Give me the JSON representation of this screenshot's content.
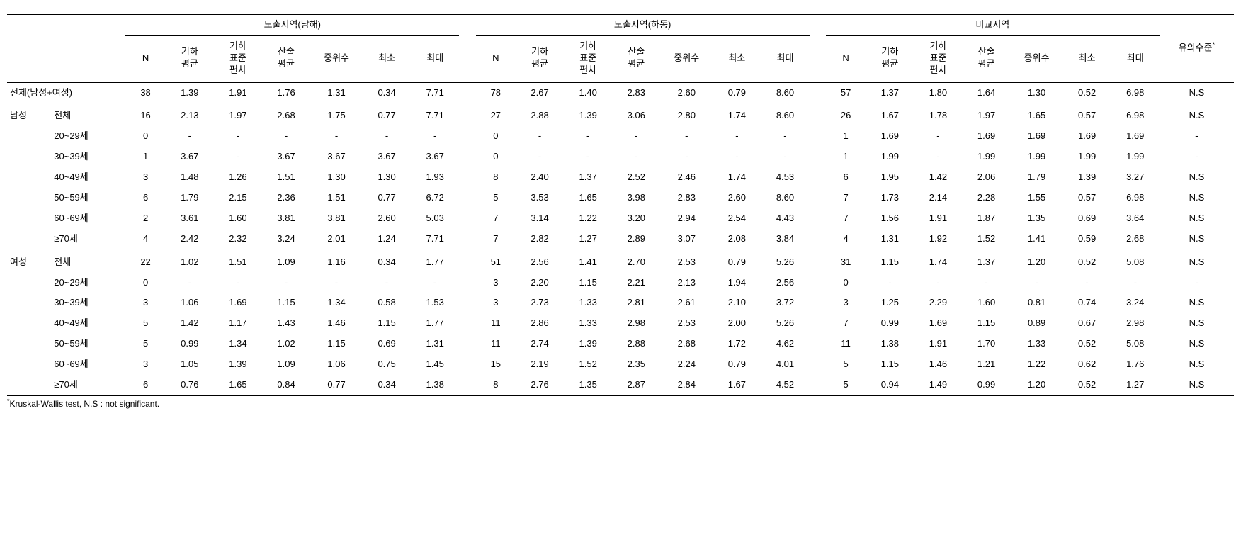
{
  "headers": {
    "group1": "노출지역(남해)",
    "group2": "노출지역(하동)",
    "group3": "비교지역",
    "significance": "유의수준",
    "sup": "*",
    "cols": {
      "n": "N",
      "geoMean": "기하\n평균",
      "geoSd": "기하\n표준\n편차",
      "arithMean": "산술\n평균",
      "median": "중위수",
      "min": "최소",
      "max": "최대"
    }
  },
  "rowLabels": {
    "total": "전체(남성+여성)",
    "male": "남성",
    "female": "여성",
    "all": "전체",
    "age20": "20~29세",
    "age30": "30~39세",
    "age40": "40~49세",
    "age50": "50~59세",
    "age60": "60~69세",
    "age70": "≥70세"
  },
  "footnote": "Kruskal-Wallis test, N.S : not significant.",
  "rows": [
    {
      "l1": "total",
      "l2": "",
      "g1": [
        "38",
        "1.39",
        "1.91",
        "1.76",
        "1.31",
        "0.34",
        "7.71"
      ],
      "g2": [
        "78",
        "2.67",
        "1.40",
        "2.83",
        "2.60",
        "0.79",
        "8.60"
      ],
      "g3": [
        "57",
        "1.37",
        "1.80",
        "1.64",
        "1.30",
        "0.52",
        "6.98"
      ],
      "sig": "N.S",
      "spacer": false
    },
    {
      "l1": "male",
      "l2": "all",
      "g1": [
        "16",
        "2.13",
        "1.97",
        "2.68",
        "1.75",
        "0.77",
        "7.71"
      ],
      "g2": [
        "27",
        "2.88",
        "1.39",
        "3.06",
        "2.80",
        "1.74",
        "8.60"
      ],
      "g3": [
        "26",
        "1.67",
        "1.78",
        "1.97",
        "1.65",
        "0.57",
        "6.98"
      ],
      "sig": "N.S",
      "spacer": true
    },
    {
      "l1": "",
      "l2": "age20",
      "g1": [
        "0",
        "-",
        "-",
        "-",
        "-",
        "-",
        "-"
      ],
      "g2": [
        "0",
        "-",
        "-",
        "-",
        "-",
        "-",
        "-"
      ],
      "g3": [
        "1",
        "1.69",
        "-",
        "1.69",
        "1.69",
        "1.69",
        "1.69"
      ],
      "sig": "-",
      "spacer": false
    },
    {
      "l1": "",
      "l2": "age30",
      "g1": [
        "1",
        "3.67",
        "-",
        "3.67",
        "3.67",
        "3.67",
        "3.67"
      ],
      "g2": [
        "0",
        "-",
        "-",
        "-",
        "-",
        "-",
        "-"
      ],
      "g3": [
        "1",
        "1.99",
        "-",
        "1.99",
        "1.99",
        "1.99",
        "1.99"
      ],
      "sig": "-",
      "spacer": false
    },
    {
      "l1": "",
      "l2": "age40",
      "g1": [
        "3",
        "1.48",
        "1.26",
        "1.51",
        "1.30",
        "1.30",
        "1.93"
      ],
      "g2": [
        "8",
        "2.40",
        "1.37",
        "2.52",
        "2.46",
        "1.74",
        "4.53"
      ],
      "g3": [
        "6",
        "1.95",
        "1.42",
        "2.06",
        "1.79",
        "1.39",
        "3.27"
      ],
      "sig": "N.S",
      "spacer": false
    },
    {
      "l1": "",
      "l2": "age50",
      "g1": [
        "6",
        "1.79",
        "2.15",
        "2.36",
        "1.51",
        "0.77",
        "6.72"
      ],
      "g2": [
        "5",
        "3.53",
        "1.65",
        "3.98",
        "2.83",
        "2.60",
        "8.60"
      ],
      "g3": [
        "7",
        "1.73",
        "2.14",
        "2.28",
        "1.55",
        "0.57",
        "6.98"
      ],
      "sig": "N.S",
      "spacer": false
    },
    {
      "l1": "",
      "l2": "age60",
      "g1": [
        "2",
        "3.61",
        "1.60",
        "3.81",
        "3.81",
        "2.60",
        "5.03"
      ],
      "g2": [
        "7",
        "3.14",
        "1.22",
        "3.20",
        "2.94",
        "2.54",
        "4.43"
      ],
      "g3": [
        "7",
        "1.56",
        "1.91",
        "1.87",
        "1.35",
        "0.69",
        "3.64"
      ],
      "sig": "N.S",
      "spacer": false
    },
    {
      "l1": "",
      "l2": "age70",
      "g1": [
        "4",
        "2.42",
        "2.32",
        "3.24",
        "2.01",
        "1.24",
        "7.71"
      ],
      "g2": [
        "7",
        "2.82",
        "1.27",
        "2.89",
        "3.07",
        "2.08",
        "3.84"
      ],
      "g3": [
        "4",
        "1.31",
        "1.92",
        "1.52",
        "1.41",
        "0.59",
        "2.68"
      ],
      "sig": "N.S",
      "spacer": false
    },
    {
      "l1": "female",
      "l2": "all",
      "g1": [
        "22",
        "1.02",
        "1.51",
        "1.09",
        "1.16",
        "0.34",
        "1.77"
      ],
      "g2": [
        "51",
        "2.56",
        "1.41",
        "2.70",
        "2.53",
        "0.79",
        "5.26"
      ],
      "g3": [
        "31",
        "1.15",
        "1.74",
        "1.37",
        "1.20",
        "0.52",
        "5.08"
      ],
      "sig": "N.S",
      "spacer": true
    },
    {
      "l1": "",
      "l2": "age20",
      "g1": [
        "0",
        "-",
        "-",
        "-",
        "-",
        "-",
        "-"
      ],
      "g2": [
        "3",
        "2.20",
        "1.15",
        "2.21",
        "2.13",
        "1.94",
        "2.56"
      ],
      "g3": [
        "0",
        "-",
        "-",
        "-",
        "-",
        "-",
        "-"
      ],
      "sig": "-",
      "spacer": false
    },
    {
      "l1": "",
      "l2": "age30",
      "g1": [
        "3",
        "1.06",
        "1.69",
        "1.15",
        "1.34",
        "0.58",
        "1.53"
      ],
      "g2": [
        "3",
        "2.73",
        "1.33",
        "2.81",
        "2.61",
        "2.10",
        "3.72"
      ],
      "g3": [
        "3",
        "1.25",
        "2.29",
        "1.60",
        "0.81",
        "0.74",
        "3.24"
      ],
      "sig": "N.S",
      "spacer": false
    },
    {
      "l1": "",
      "l2": "age40",
      "g1": [
        "5",
        "1.42",
        "1.17",
        "1.43",
        "1.46",
        "1.15",
        "1.77"
      ],
      "g2": [
        "11",
        "2.86",
        "1.33",
        "2.98",
        "2.53",
        "2.00",
        "5.26"
      ],
      "g3": [
        "7",
        "0.99",
        "1.69",
        "1.15",
        "0.89",
        "0.67",
        "2.98"
      ],
      "sig": "N.S",
      "spacer": false
    },
    {
      "l1": "",
      "l2": "age50",
      "g1": [
        "5",
        "0.99",
        "1.34",
        "1.02",
        "1.15",
        "0.69",
        "1.31"
      ],
      "g2": [
        "11",
        "2.74",
        "1.39",
        "2.88",
        "2.68",
        "1.72",
        "4.62"
      ],
      "g3": [
        "11",
        "1.38",
        "1.91",
        "1.70",
        "1.33",
        "0.52",
        "5.08"
      ],
      "sig": "N.S",
      "spacer": false
    },
    {
      "l1": "",
      "l2": "age60",
      "g1": [
        "3",
        "1.05",
        "1.39",
        "1.09",
        "1.06",
        "0.75",
        "1.45"
      ],
      "g2": [
        "15",
        "2.19",
        "1.52",
        "2.35",
        "2.24",
        "0.79",
        "4.01"
      ],
      "g3": [
        "5",
        "1.15",
        "1.46",
        "1.21",
        "1.22",
        "0.62",
        "1.76"
      ],
      "sig": "N.S",
      "spacer": false
    },
    {
      "l1": "",
      "l2": "age70",
      "g1": [
        "6",
        "0.76",
        "1.65",
        "0.84",
        "0.77",
        "0.34",
        "1.38"
      ],
      "g2": [
        "8",
        "2.76",
        "1.35",
        "2.87",
        "2.84",
        "1.67",
        "4.52"
      ],
      "g3": [
        "5",
        "0.94",
        "1.49",
        "0.99",
        "1.20",
        "0.52",
        "1.27"
      ],
      "sig": "N.S",
      "spacer": false
    }
  ]
}
